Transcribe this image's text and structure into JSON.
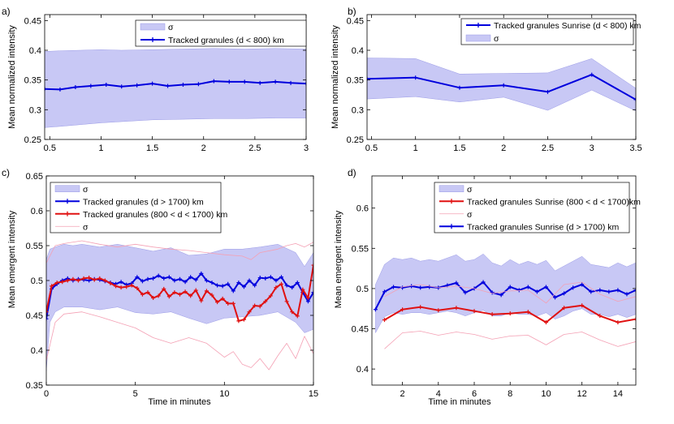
{
  "chart_data": [
    {
      "panel_label": "a)",
      "type": "line",
      "xlabel": "",
      "ylabel": "Mean normalized intensity",
      "xlim": [
        0.45,
        3.0
      ],
      "ylim": [
        0.25,
        0.46
      ],
      "xticks": [
        0.5,
        1,
        1.5,
        2,
        2.5,
        3
      ],
      "yticks": [
        0.25,
        0.3,
        0.35,
        0.4,
        0.45
      ],
      "xtick_labels": [
        "0.5",
        "1",
        "1.5",
        "2",
        "2.5",
        "3"
      ],
      "ytick_labels": [
        "0.25",
        "0.3",
        "0.35",
        "0.4",
        "0.45"
      ],
      "legend": [
        "σ",
        "Tracked granules (d < 800) km"
      ],
      "bands": [
        {
          "name": "σ",
          "color": "#c8c8f5",
          "x": [
            0.45,
            0.6,
            0.8,
            1.0,
            1.2,
            1.5,
            1.8,
            2.1,
            2.4,
            2.7,
            3.0
          ],
          "upper": [
            0.398,
            0.399,
            0.4,
            0.401,
            0.4,
            0.401,
            0.402,
            0.403,
            0.402,
            0.403,
            0.402
          ],
          "lower": [
            0.27,
            0.272,
            0.275,
            0.278,
            0.28,
            0.283,
            0.284,
            0.285,
            0.285,
            0.286,
            0.286
          ]
        }
      ],
      "series": [
        {
          "name": "Tracked granules (d < 800) km",
          "color": "#0000dd",
          "width": 2,
          "markers": true,
          "x": [
            0.45,
            0.6,
            0.75,
            0.9,
            1.05,
            1.2,
            1.35,
            1.5,
            1.65,
            1.8,
            1.95,
            2.1,
            2.25,
            2.4,
            2.55,
            2.7,
            2.85,
            3.0
          ],
          "y": [
            0.335,
            0.334,
            0.338,
            0.34,
            0.342,
            0.339,
            0.341,
            0.344,
            0.34,
            0.342,
            0.343,
            0.348,
            0.347,
            0.347,
            0.345,
            0.347,
            0.345,
            0.344
          ]
        }
      ]
    },
    {
      "panel_label": "b)",
      "type": "line",
      "xlabel": "",
      "ylabel": "Mean normalized intensity",
      "xlim": [
        0.45,
        3.5
      ],
      "ylim": [
        0.25,
        0.46
      ],
      "xticks": [
        0.5,
        1,
        1.5,
        2,
        2.5,
        3,
        3.5
      ],
      "yticks": [
        0.25,
        0.3,
        0.35,
        0.4,
        0.45
      ],
      "xtick_labels": [
        "0.5",
        "1",
        "1.5",
        "2",
        "2.5",
        "3",
        "3.5"
      ],
      "ytick_labels": [
        "0.25",
        "0.3",
        "0.35",
        "0.4",
        "0.45"
      ],
      "legend": [
        "Tracked granules Sunrise (d < 800) km",
        "σ"
      ],
      "bands": [
        {
          "name": "σ",
          "color": "#c8c8f5",
          "x": [
            0.45,
            1.0,
            1.5,
            2.0,
            2.5,
            3.0,
            3.5
          ],
          "upper": [
            0.387,
            0.386,
            0.36,
            0.361,
            0.362,
            0.386,
            0.336
          ],
          "lower": [
            0.318,
            0.322,
            0.313,
            0.321,
            0.299,
            0.333,
            0.298
          ]
        }
      ],
      "series": [
        {
          "name": "Tracked granules Sunrise (d < 800) km",
          "color": "#0000dd",
          "width": 2,
          "markers": true,
          "x": [
            0.45,
            1.0,
            1.5,
            2.0,
            2.5,
            3.0,
            3.5
          ],
          "y": [
            0.352,
            0.354,
            0.337,
            0.341,
            0.33,
            0.359,
            0.317
          ]
        }
      ]
    },
    {
      "panel_label": "c)",
      "type": "line",
      "xlabel": "Time in minutes",
      "ylabel": "Mean emergent intensity",
      "xlim": [
        0,
        15
      ],
      "ylim": [
        0.35,
        0.65
      ],
      "xticks": [
        0,
        5,
        10,
        15
      ],
      "yticks": [
        0.35,
        0.4,
        0.45,
        0.5,
        0.55,
        0.6,
        0.65
      ],
      "xtick_labels": [
        "0",
        "5",
        "10",
        "15"
      ],
      "ytick_labels": [
        "0.35",
        "0.4",
        "0.45",
        "0.5",
        "0.55",
        "0.6",
        "0.65"
      ],
      "legend": [
        "σ",
        "Tracked granules (d > 1700) km",
        "Tracked granules (800 < d < 1700) km",
        "σ"
      ],
      "bands": [
        {
          "name": "σ",
          "color": "#c8c8f5",
          "x": [
            0,
            0.2,
            0.5,
            1,
            1.5,
            2,
            3,
            4,
            5,
            6,
            7,
            8,
            9,
            10,
            11,
            12,
            13,
            14,
            14.5,
            15
          ],
          "upper": [
            0.53,
            0.545,
            0.548,
            0.552,
            0.55,
            0.552,
            0.548,
            0.552,
            0.547,
            0.542,
            0.547,
            0.536,
            0.538,
            0.545,
            0.545,
            0.548,
            0.552,
            0.54,
            0.52,
            0.54
          ],
          "lower": [
            0.37,
            0.44,
            0.455,
            0.462,
            0.462,
            0.462,
            0.458,
            0.462,
            0.454,
            0.452,
            0.455,
            0.446,
            0.438,
            0.446,
            0.448,
            0.45,
            0.455,
            0.44,
            0.425,
            0.43
          ]
        }
      ],
      "series": [
        {
          "name": "Tracked granules (d > 1700) km",
          "color": "#0000dd",
          "width": 2,
          "markers": true,
          "x": [
            0,
            0.3,
            0.6,
            0.9,
            1.2,
            1.5,
            1.8,
            2.1,
            2.4,
            2.7,
            3.0,
            3.3,
            3.6,
            3.9,
            4.2,
            4.5,
            4.8,
            5.1,
            5.4,
            5.7,
            6.0,
            6.3,
            6.6,
            6.9,
            7.2,
            7.5,
            7.8,
            8.1,
            8.4,
            8.7,
            9.0,
            9.3,
            9.6,
            9.9,
            10.2,
            10.5,
            10.8,
            11.1,
            11.4,
            11.7,
            12.0,
            12.3,
            12.6,
            12.9,
            13.2,
            13.5,
            13.8,
            14.1,
            14.4,
            14.7,
            15.0
          ],
          "y": [
            0.445,
            0.488,
            0.495,
            0.5,
            0.503,
            0.5,
            0.502,
            0.501,
            0.5,
            0.502,
            0.501,
            0.499,
            0.497,
            0.495,
            0.498,
            0.494,
            0.496,
            0.505,
            0.499,
            0.502,
            0.503,
            0.507,
            0.503,
            0.505,
            0.5,
            0.502,
            0.498,
            0.505,
            0.501,
            0.51,
            0.5,
            0.497,
            0.493,
            0.492,
            0.495,
            0.485,
            0.497,
            0.491,
            0.5,
            0.493,
            0.504,
            0.503,
            0.505,
            0.5,
            0.505,
            0.493,
            0.49,
            0.497,
            0.483,
            0.47,
            0.483
          ]
        },
        {
          "name": "Tracked granules (800 < d < 1700) km",
          "color": "#e01010",
          "width": 2,
          "markers": true,
          "x": [
            0,
            0.3,
            0.6,
            0.9,
            1.2,
            1.5,
            1.8,
            2.1,
            2.4,
            2.7,
            3.0,
            3.3,
            3.6,
            3.9,
            4.2,
            4.5,
            4.8,
            5.1,
            5.4,
            5.7,
            6.0,
            6.3,
            6.6,
            6.9,
            7.2,
            7.5,
            7.8,
            8.1,
            8.4,
            8.7,
            9.0,
            9.3,
            9.6,
            9.9,
            10.2,
            10.5,
            10.8,
            11.1,
            11.4,
            11.7,
            12.0,
            12.3,
            12.6,
            12.9,
            13.2,
            13.5,
            13.8,
            14.1,
            14.4,
            14.7,
            15.0
          ],
          "y": [
            0.455,
            0.492,
            0.497,
            0.498,
            0.5,
            0.502,
            0.5,
            0.503,
            0.504,
            0.501,
            0.503,
            0.5,
            0.496,
            0.492,
            0.49,
            0.491,
            0.493,
            0.489,
            0.48,
            0.483,
            0.475,
            0.478,
            0.488,
            0.477,
            0.483,
            0.48,
            0.484,
            0.478,
            0.486,
            0.471,
            0.485,
            0.479,
            0.469,
            0.474,
            0.467,
            0.467,
            0.442,
            0.444,
            0.455,
            0.464,
            0.463,
            0.47,
            0.478,
            0.49,
            0.495,
            0.47,
            0.455,
            0.449,
            0.487,
            0.475,
            0.522
          ]
        },
        {
          "name": "σ",
          "color": "#f4a0b4",
          "width": 0.8,
          "markers": false,
          "x": [
            0,
            0.5,
            1,
            2,
            3,
            4,
            5,
            6,
            7,
            8,
            9,
            10,
            11,
            11.5,
            12,
            13,
            13.5,
            14,
            14.5,
            15
          ],
          "y": [
            0.525,
            0.55,
            0.553,
            0.557,
            0.552,
            0.548,
            0.552,
            0.548,
            0.545,
            0.543,
            0.54,
            0.537,
            0.535,
            0.53,
            0.54,
            0.545,
            0.55,
            0.553,
            0.548,
            0.555
          ]
        },
        {
          "name": "σ",
          "color": "#f4a0b4",
          "width": 0.8,
          "markers": false,
          "x": [
            0,
            0.5,
            1,
            2,
            3,
            4,
            5,
            6,
            7,
            8,
            9,
            10,
            10.5,
            11,
            11.5,
            12,
            12.5,
            13,
            13.5,
            14,
            14.5,
            15
          ],
          "y": [
            0.385,
            0.44,
            0.452,
            0.455,
            0.448,
            0.44,
            0.432,
            0.418,
            0.41,
            0.418,
            0.41,
            0.39,
            0.398,
            0.38,
            0.375,
            0.388,
            0.372,
            0.392,
            0.41,
            0.388,
            0.42,
            0.395
          ]
        }
      ]
    },
    {
      "panel_label": "d)",
      "type": "line",
      "xlabel": "Time in minutes",
      "ylabel": "Mean emergent intensity",
      "xlim": [
        0.3,
        15
      ],
      "ylim": [
        0.38,
        0.64
      ],
      "xticks": [
        2,
        4,
        6,
        8,
        10,
        12,
        14
      ],
      "yticks": [
        0.4,
        0.45,
        0.5,
        0.55,
        0.6
      ],
      "xtick_labels": [
        "2",
        "4",
        "6",
        "8",
        "10",
        "12",
        "14"
      ],
      "ytick_labels": [
        "0.4",
        "0.45",
        "0.5",
        "0.55",
        "0.6"
      ],
      "legend": [
        "σ",
        "Tracked granules Sunrise (800 < d < 1700)km",
        "σ",
        "Tracked granules Sunrise (d > 1700) km"
      ],
      "bands": [
        {
          "name": "σ",
          "color": "#c8c8f5",
          "x": [
            0.5,
            1,
            1.5,
            2,
            2.5,
            3,
            3.5,
            4,
            4.5,
            5,
            5.5,
            6,
            6.5,
            7,
            7.5,
            8,
            8.5,
            9,
            9.5,
            10,
            10.5,
            11,
            11.5,
            12,
            12.5,
            13,
            13.5,
            14,
            14.5,
            15
          ],
          "upper": [
            0.505,
            0.53,
            0.538,
            0.536,
            0.538,
            0.534,
            0.536,
            0.534,
            0.538,
            0.542,
            0.534,
            0.536,
            0.543,
            0.532,
            0.528,
            0.536,
            0.53,
            0.534,
            0.53,
            0.535,
            0.522,
            0.528,
            0.534,
            0.54,
            0.53,
            0.528,
            0.526,
            0.532,
            0.527,
            0.532
          ],
          "lower": [
            0.445,
            0.465,
            0.47,
            0.468,
            0.47,
            0.47,
            0.468,
            0.47,
            0.472,
            0.47,
            0.466,
            0.47,
            0.473,
            0.466,
            0.466,
            0.47,
            0.468,
            0.468,
            0.466,
            0.47,
            0.462,
            0.466,
            0.472,
            0.475,
            0.468,
            0.468,
            0.465,
            0.468,
            0.464,
            0.468
          ]
        }
      ],
      "series": [
        {
          "name": "Tracked granules Sunrise (d > 1700) km",
          "color": "#0000dd",
          "width": 2,
          "markers": true,
          "x": [
            0.5,
            1,
            1.5,
            2,
            2.5,
            3,
            3.5,
            4,
            4.5,
            5,
            5.5,
            6,
            6.5,
            7,
            7.5,
            8,
            8.5,
            9,
            9.5,
            10,
            10.5,
            11,
            11.5,
            12,
            12.5,
            13,
            13.5,
            14,
            14.5,
            15
          ],
          "y": [
            0.474,
            0.496,
            0.502,
            0.501,
            0.503,
            0.501,
            0.502,
            0.501,
            0.504,
            0.507,
            0.495,
            0.5,
            0.508,
            0.495,
            0.492,
            0.502,
            0.498,
            0.502,
            0.496,
            0.502,
            0.489,
            0.494,
            0.501,
            0.505,
            0.496,
            0.498,
            0.496,
            0.498,
            0.493,
            0.498
          ]
        },
        {
          "name": "Tracked granules Sunrise (800 < d < 1700)km",
          "color": "#e01010",
          "width": 2,
          "markers": true,
          "x": [
            1,
            2,
            3,
            4,
            5,
            6,
            7,
            8,
            9,
            10,
            11,
            12,
            13,
            14,
            15
          ],
          "y": [
            0.461,
            0.474,
            0.477,
            0.473,
            0.476,
            0.472,
            0.468,
            0.469,
            0.471,
            0.458,
            0.476,
            0.479,
            0.466,
            0.458,
            0.462
          ]
        },
        {
          "name": "σ",
          "color": "#f4a0b4",
          "width": 0.8,
          "markers": false,
          "x": [
            1,
            2,
            3,
            4,
            5,
            6,
            7,
            8,
            9,
            10,
            11,
            12,
            13,
            14,
            15
          ],
          "y": [
            0.49,
            0.502,
            0.505,
            0.501,
            0.503,
            0.5,
            0.494,
            0.497,
            0.498,
            0.482,
            0.505,
            0.508,
            0.493,
            0.484,
            0.49
          ]
        },
        {
          "name": "σ",
          "color": "#f4a0b4",
          "width": 0.8,
          "markers": false,
          "x": [
            1,
            2,
            3,
            4,
            5,
            6,
            7,
            8,
            9,
            10,
            11,
            12,
            13,
            14,
            15
          ],
          "y": [
            0.425,
            0.445,
            0.447,
            0.442,
            0.446,
            0.443,
            0.437,
            0.441,
            0.442,
            0.43,
            0.443,
            0.446,
            0.436,
            0.428,
            0.434
          ]
        }
      ]
    }
  ]
}
